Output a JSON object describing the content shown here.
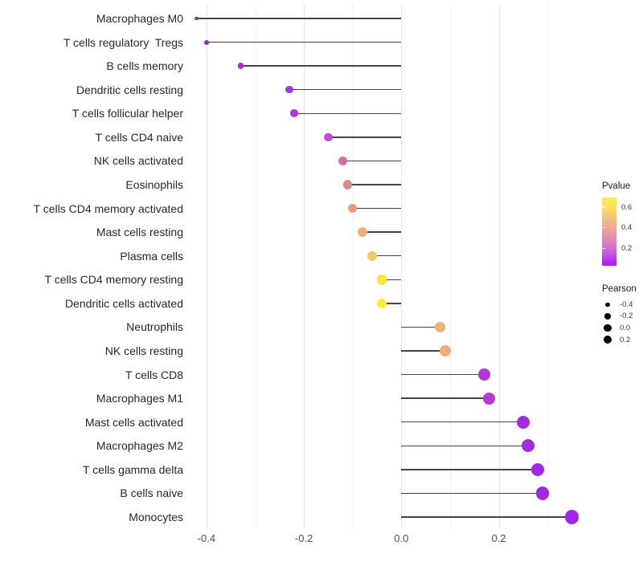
{
  "chart_data": {
    "type": "lollipop",
    "title": "",
    "xlabel": "",
    "ylabel": "",
    "categories": [
      "Macrophages M0",
      "T cells regulatory  Tregs",
      "B cells memory",
      "Dendritic cells resting",
      "T cells follicular helper",
      "T cells CD4 naive",
      "NK cells activated",
      "Eosinophils",
      "T cells CD4 memory activated",
      "Mast cells resting",
      "Plasma cells",
      "T cells CD4 memory resting",
      "Dendritic cells activated",
      "Neutrophils",
      "NK cells resting",
      "T cells CD8",
      "Macrophages M1",
      "Mast cells activated",
      "Macrophages M2",
      "T cells gamma delta",
      "B cells naive",
      "Monocytes"
    ],
    "series": [
      {
        "name": "Pearson",
        "values": [
          -0.42,
          -0.4,
          -0.33,
          -0.23,
          -0.22,
          -0.15,
          -0.12,
          -0.11,
          -0.1,
          -0.08,
          -0.06,
          -0.04,
          -0.04,
          0.08,
          0.09,
          0.17,
          0.18,
          0.25,
          0.26,
          0.28,
          0.29,
          0.35
        ]
      },
      {
        "name": "Pvalue (approx, read from color scale)",
        "values": [
          0.03,
          0.05,
          0.06,
          0.08,
          0.09,
          0.13,
          0.22,
          0.28,
          0.34,
          0.4,
          0.48,
          0.63,
          0.66,
          0.4,
          0.39,
          0.14,
          0.13,
          0.07,
          0.07,
          0.06,
          0.06,
          0.04
        ]
      }
    ],
    "point_colors": [
      "#8B27C1",
      "#9329CB",
      "#9C2ED1",
      "#A438D8",
      "#A93BD8",
      "#C24CCE",
      "#CE6FA8",
      "#DB8A91",
      "#E69C7B",
      "#EBAE74",
      "#F0CB66",
      "#F3EC33",
      "#F5F02B",
      "#EFB273",
      "#EEB077",
      "#B137D6",
      "#B539D2",
      "#A42AE0",
      "#A42AE0",
      "#A229E2",
      "#A229E2",
      "#A326E6"
    ],
    "dot_radius_px": [
      2.3,
      3.0,
      3.7,
      4.6,
      4.8,
      5.2,
      5.5,
      5.6,
      5.8,
      6.0,
      6.1,
      6.3,
      6.3,
      6.7,
      6.8,
      7.3,
      7.4,
      8.0,
      8.0,
      8.2,
      8.4,
      8.8
    ],
    "x_ticks": [
      {
        "value": -0.4,
        "label": "-0.4"
      },
      {
        "value": -0.2,
        "label": "-0.2"
      },
      {
        "value": 0.0,
        "label": "0.0"
      },
      {
        "value": 0.2,
        "label": "0.2"
      }
    ],
    "x_minor_ticks": [
      -0.3,
      -0.1,
      0.1,
      0.3
    ],
    "xlim": [
      -0.44,
      0.4
    ],
    "grid": "vertical major and minor gridlines, light gray, white background",
    "legend_position": "right"
  },
  "legend": {
    "pvalue": {
      "title": "Pvalue",
      "ticks": [
        {
          "value": 0.6,
          "label": "0.6"
        },
        {
          "value": 0.4,
          "label": "0.4"
        },
        {
          "value": 0.2,
          "label": "0.2"
        }
      ],
      "range": [
        0.03,
        0.695
      ],
      "gradient_top_to_bottom": [
        "#FAEF4C",
        "#F7DC62",
        "#F0BA85",
        "#E89FA0",
        "#DA80C2",
        "#C554E3",
        "#A81BF2"
      ]
    },
    "pearson": {
      "title": "Pearson",
      "dot_color": "#000000",
      "items": [
        {
          "label": "-0.4",
          "r": 2.7
        },
        {
          "label": "-0.2",
          "r": 3.7
        },
        {
          "label": "0.0",
          "r": 4.7
        },
        {
          "label": "0.2",
          "r": 5.0
        }
      ]
    }
  },
  "style": {
    "background": "#FFFFFF",
    "stick_color": "#434343",
    "major_grid_color": "#E4E4E4",
    "minor_grid_color": "#F1F1F1",
    "axis_text_color": "#4D4D4D",
    "category_text_color": "#262626"
  }
}
